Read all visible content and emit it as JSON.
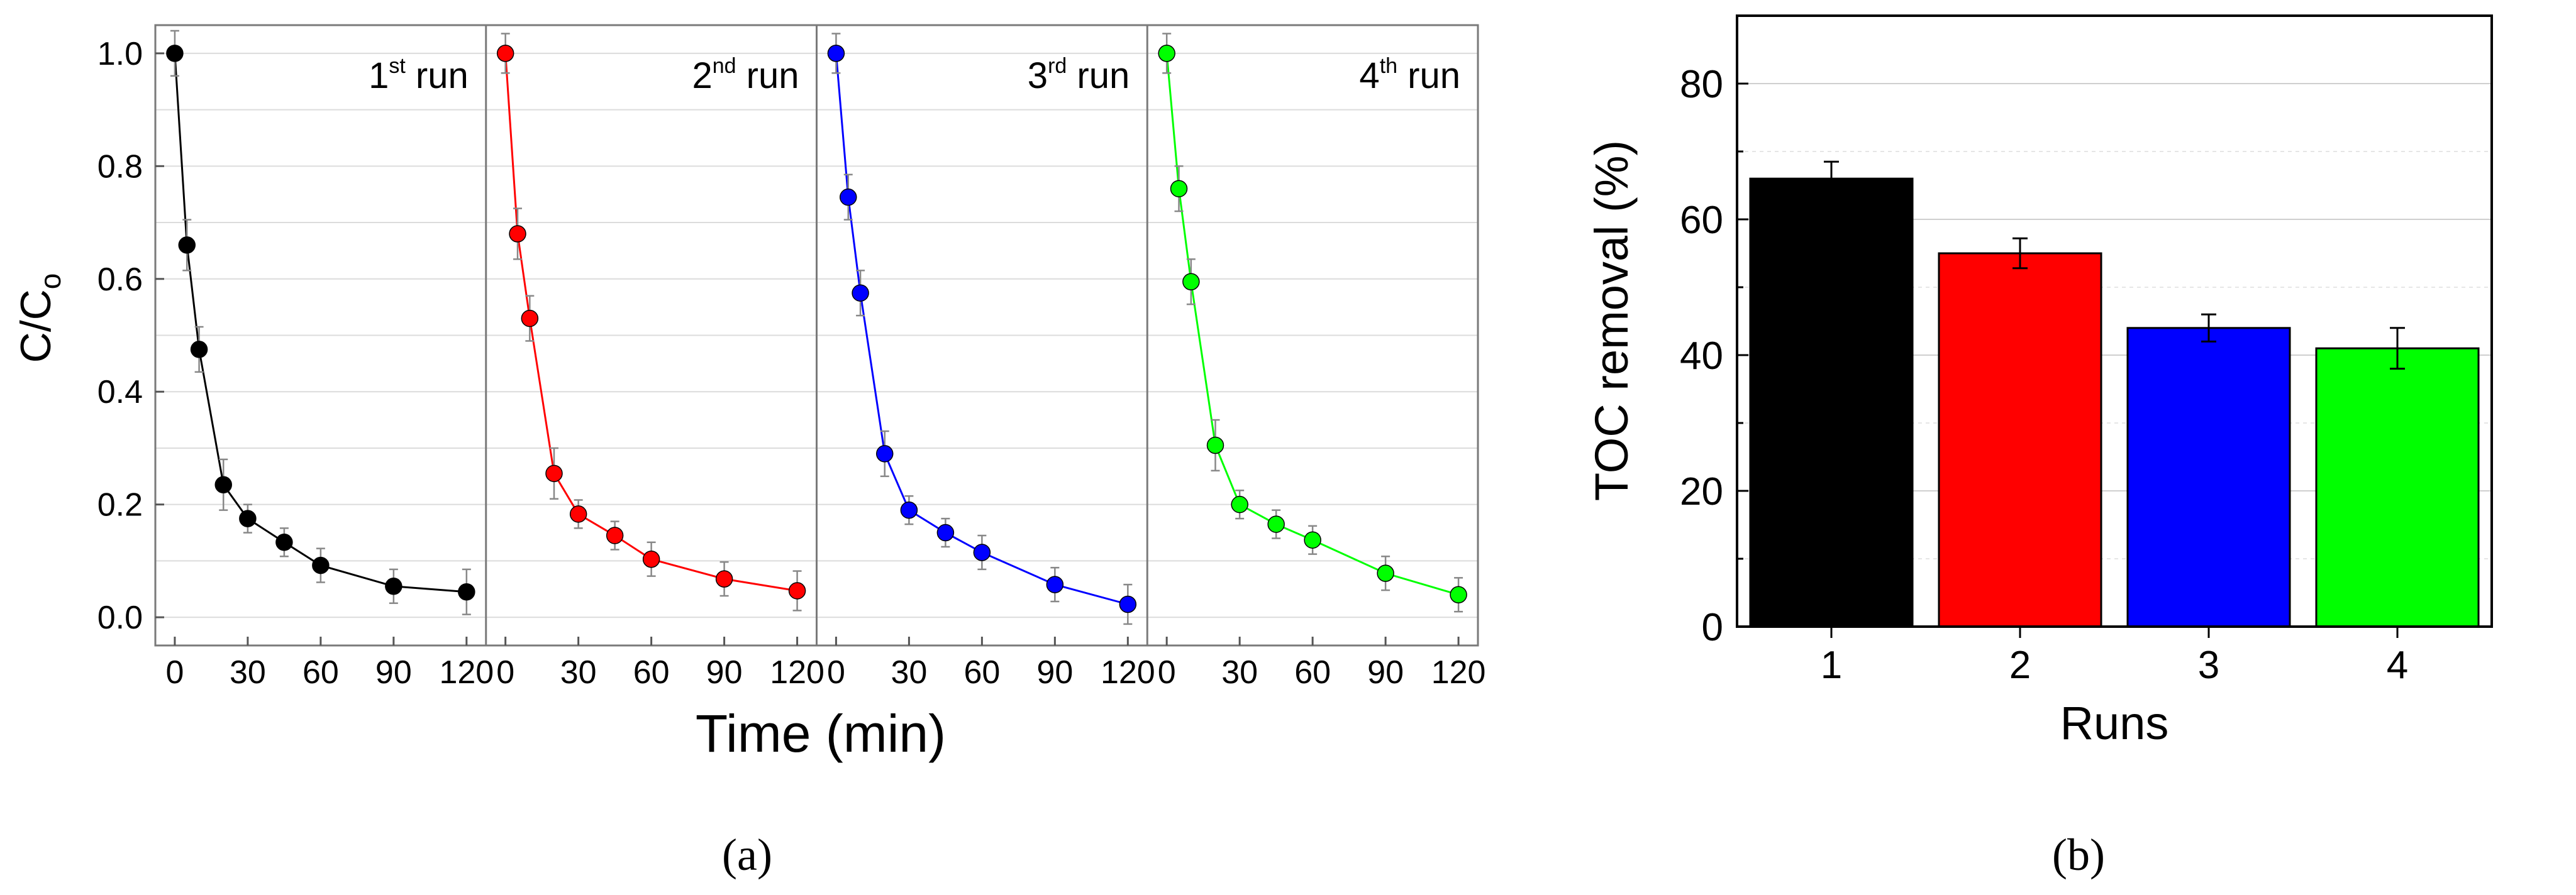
{
  "chart_data": [
    {
      "type": "line",
      "panel_caption": "(a)",
      "xlabel": "Time (min)",
      "ylabel": "C/C",
      "ylabel_subscript": "o",
      "ylim": [
        -0.05,
        1.05
      ],
      "yticks": [
        "0.0",
        "0.2",
        "0.4",
        "0.6",
        "0.8",
        "1.0"
      ],
      "xlim": [
        -8,
        128
      ],
      "xticks": [
        "0",
        "30",
        "60",
        "90",
        "120"
      ],
      "grid": true,
      "series": [
        {
          "name": "run",
          "ordinal": "1",
          "suffix": "st",
          "color": "#000000",
          "x": [
            0,
            5,
            10,
            20,
            30,
            45,
            60,
            90,
            120
          ],
          "y": [
            1.0,
            0.66,
            0.475,
            0.235,
            0.175,
            0.133,
            0.092,
            0.055,
            0.045
          ],
          "err": [
            0.04,
            0.045,
            0.04,
            0.045,
            0.025,
            0.025,
            0.03,
            0.03,
            0.04
          ]
        },
        {
          "name": "run",
          "ordinal": "2",
          "suffix": "nd",
          "color": "#ff0000",
          "x": [
            0,
            5,
            10,
            20,
            30,
            45,
            60,
            90,
            120
          ],
          "y": [
            1.0,
            0.68,
            0.53,
            0.255,
            0.183,
            0.145,
            0.103,
            0.068,
            0.047
          ],
          "err": [
            0.035,
            0.045,
            0.04,
            0.045,
            0.025,
            0.025,
            0.03,
            0.03,
            0.035
          ]
        },
        {
          "name": "run",
          "ordinal": "3",
          "suffix": "rd",
          "color": "#0000ff",
          "x": [
            0,
            5,
            10,
            20,
            30,
            45,
            60,
            90,
            120
          ],
          "y": [
            1.0,
            0.745,
            0.575,
            0.29,
            0.19,
            0.15,
            0.115,
            0.058,
            0.023
          ],
          "err": [
            0.035,
            0.04,
            0.04,
            0.04,
            0.025,
            0.025,
            0.03,
            0.03,
            0.035
          ]
        },
        {
          "name": "run",
          "ordinal": "4",
          "suffix": "th",
          "color": "#00ff00",
          "x": [
            0,
            5,
            10,
            20,
            30,
            45,
            60,
            90,
            120
          ],
          "y": [
            1.0,
            0.76,
            0.595,
            0.305,
            0.2,
            0.165,
            0.137,
            0.078,
            0.04
          ],
          "err": [
            0.035,
            0.04,
            0.04,
            0.045,
            0.025,
            0.025,
            0.025,
            0.03,
            0.03
          ]
        }
      ]
    },
    {
      "type": "bar",
      "panel_caption": "(b)",
      "xlabel": "Runs",
      "ylabel": "TOC removal (%)",
      "ylim": [
        0,
        90
      ],
      "yticks": [
        "0",
        "20",
        "40",
        "60",
        "80"
      ],
      "categories": [
        "1",
        "2",
        "3",
        "4"
      ],
      "values": [
        66,
        55,
        44,
        41
      ],
      "errors": [
        2.5,
        2.2,
        2.0,
        3.0
      ],
      "colors": [
        "#000000",
        "#ff0000",
        "#0000ff",
        "#00ff00"
      ],
      "grid": true
    }
  ]
}
